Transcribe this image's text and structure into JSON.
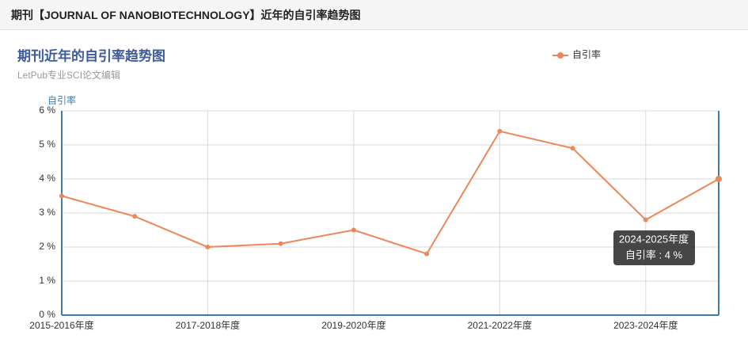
{
  "header": {
    "title": "期刊【JOURNAL OF NANOBIOTECHNOLOGY】近年的自引率趋势图"
  },
  "chart_data": {
    "type": "line",
    "title": "期刊近年的自引率趋势图",
    "subtitle": "LetPub专业SCI论文编辑",
    "y_axis_label": "自引率",
    "categories": [
      "2015-2016年度",
      null,
      "2017-2018年度",
      null,
      "2019-2020年度",
      null,
      "2021-2022年度",
      null,
      "2023-2024年度",
      null
    ],
    "series": [
      {
        "name": "自引率",
        "color": "#ed8659",
        "values": [
          3.5,
          2.9,
          2.0,
          2.1,
          2.5,
          1.8,
          5.4,
          4.9,
          2.8,
          4.0
        ]
      }
    ],
    "ylim": [
      0,
      6
    ],
    "yticks": [
      {
        "value": 0,
        "label": "0 %"
      },
      {
        "value": 1,
        "label": "1 %"
      },
      {
        "value": 2,
        "label": "2 %"
      },
      {
        "value": 3,
        "label": "3 %"
      },
      {
        "value": 4,
        "label": "4 %"
      },
      {
        "value": 5,
        "label": "5 %"
      },
      {
        "value": 6,
        "label": "6 %"
      }
    ],
    "grid": true,
    "legend": "top-right",
    "tooltip": {
      "title": "2024-2025年度",
      "text": "自引率 : 4 %"
    }
  }
}
